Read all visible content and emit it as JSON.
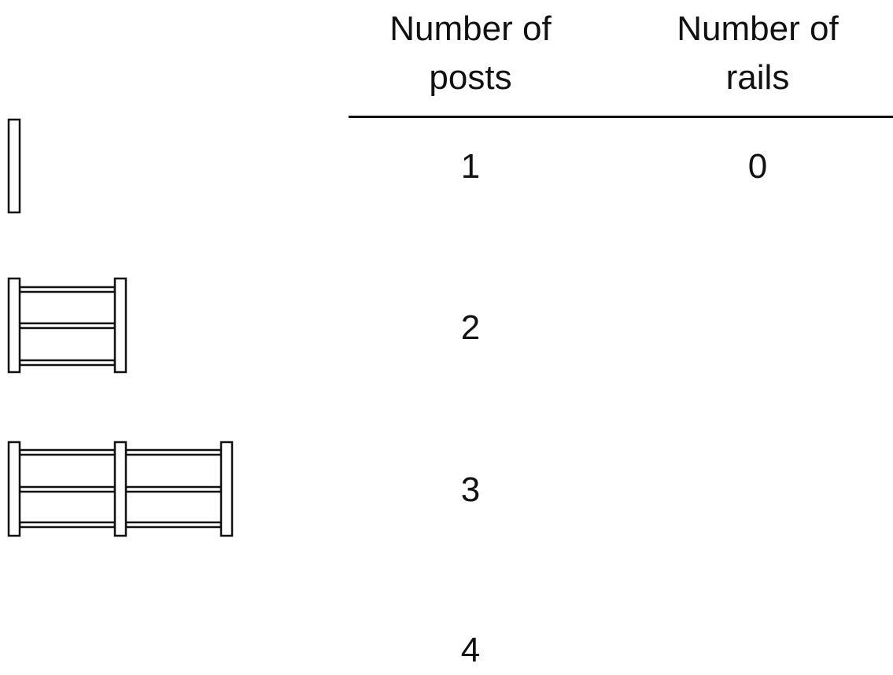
{
  "table": {
    "header": [
      "Number of posts",
      "Number of rails"
    ],
    "rows": [
      [
        1,
        0
      ],
      [
        2
      ],
      [
        3
      ],
      [
        4
      ]
    ]
  }
}
